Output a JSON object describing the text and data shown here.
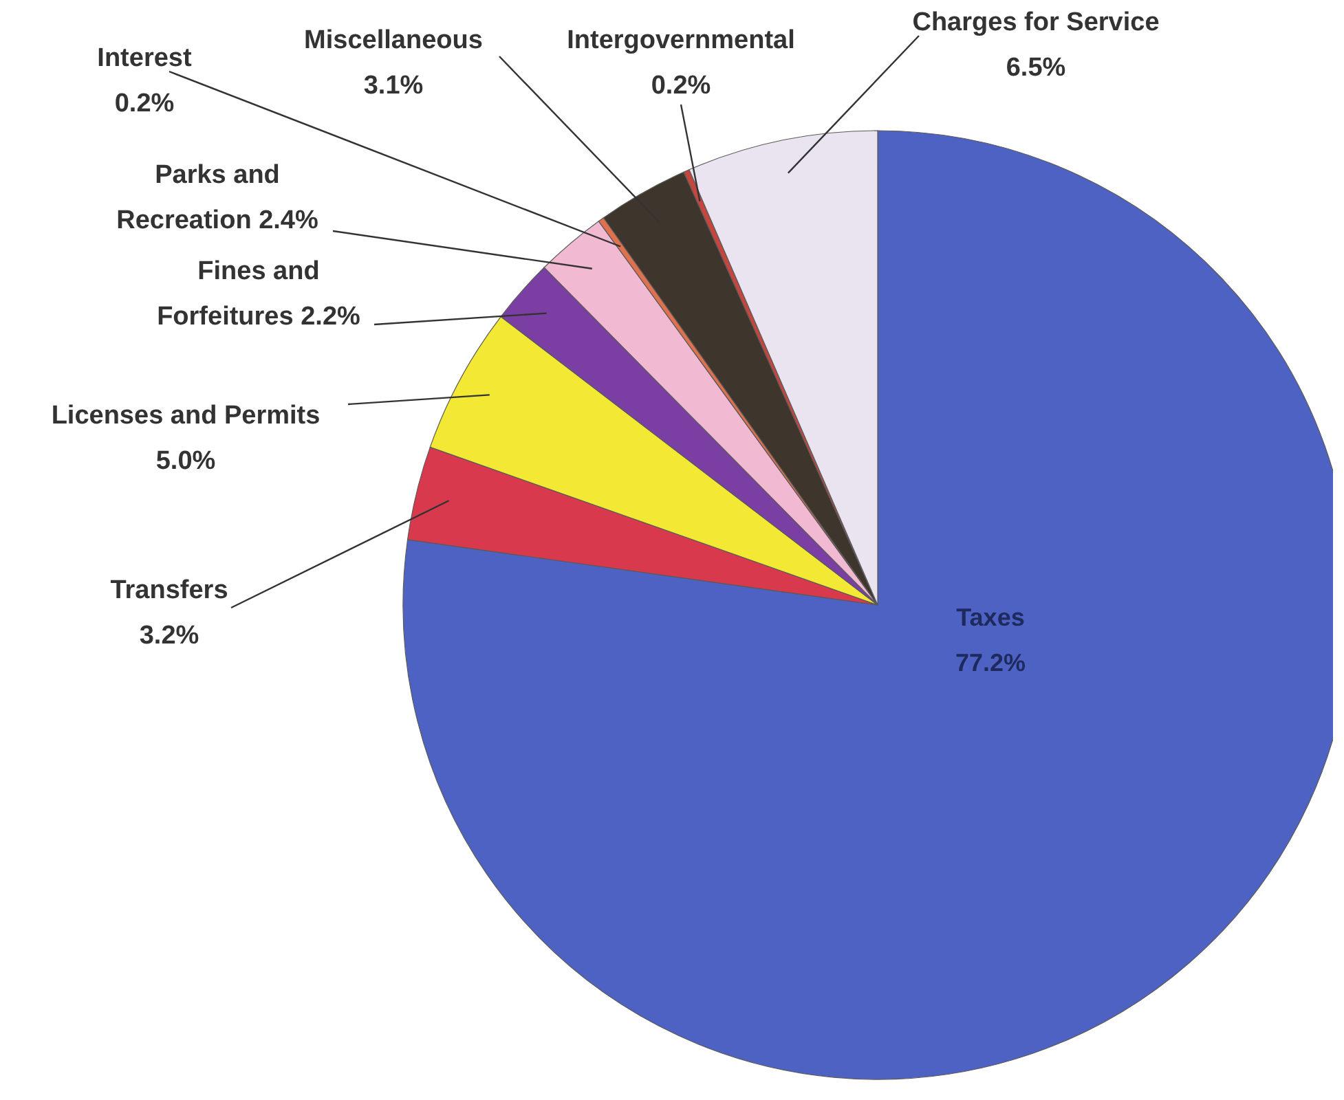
{
  "chart_data": {
    "type": "pie",
    "categories": [
      "Taxes",
      "Transfers",
      "Licenses and Permits",
      "Fines and Forfeitures",
      "Parks and Recreation",
      "Interest",
      "Miscellaneous",
      "Intergovernmental",
      "Charges for Service"
    ],
    "values": [
      77.2,
      3.2,
      5.0,
      2.2,
      2.4,
      0.2,
      3.1,
      0.2,
      6.5
    ],
    "value_labels": [
      "77.2%",
      "3.2%",
      "5.0%",
      "2.2%",
      "2.4%",
      "0.2%",
      "3.1%",
      "0.2%",
      "6.5%"
    ],
    "colors": [
      "#4d62c3",
      "#d8394c",
      "#f3e834",
      "#7b3fa4",
      "#f1b9d2",
      "#e0714f",
      "#3e352d",
      "#c4463f",
      "#e9e4ef"
    ]
  }
}
